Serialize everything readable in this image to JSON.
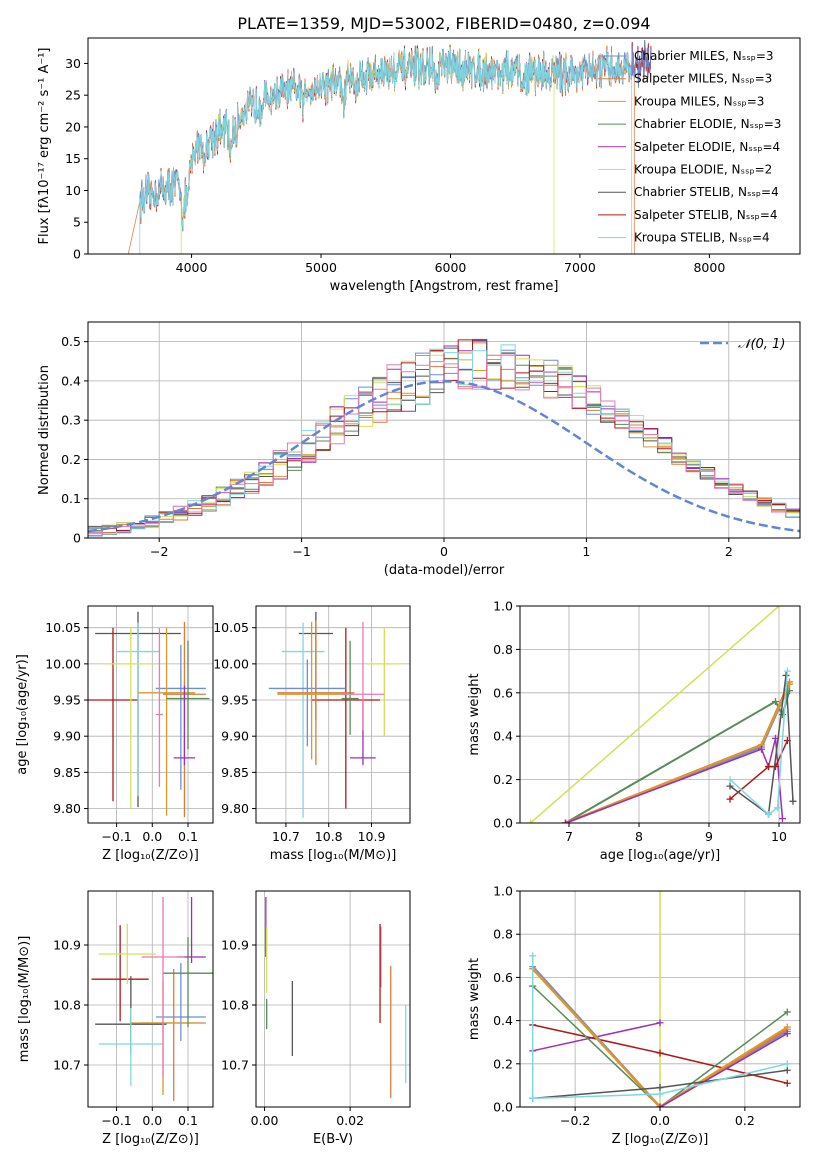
{
  "title": "PLATE=1359, MJD=53002, FIBERID=0480, z=0.094",
  "colors": {
    "Chabrier MILES": "#6b8fd6",
    "Salpeter MILES": "#e07a3c",
    "Kroupa MILES": "#d99a28",
    "Chabrier ELODIE": "#5b8a5b",
    "Salpeter ELODIE": "#9b30b8",
    "Kroupa ELODIE": "#d4e055",
    "Chabrier STELIB": "#555555",
    "Salpeter STELIB": "#b01818",
    "Kroupa STELIB": "#7fd8e0",
    "pink": "#e87ab8",
    "normal": "#5f87d6"
  },
  "chart_data": [
    {
      "type": "line",
      "name": "spectrum",
      "xlabel": "wavelength [Angstrom, rest frame]",
      "ylabel": "Flux [fλ10⁻¹⁷ erg cm⁻² s⁻¹ A⁻¹]",
      "xlim": [
        3200,
        8700
      ],
      "ylim": [
        0,
        34
      ],
      "xticks": [
        4000,
        5000,
        6000,
        7000,
        8000
      ],
      "yticks": [
        0,
        5,
        10,
        15,
        20,
        25,
        30
      ],
      "legend": "upper-right",
      "legend_entries": [
        "Chabrier MILES, Nₛₛₚ=3",
        "Salpeter MILES, Nₛₛₚ=3",
        "Kroupa MILES, Nₛₛₚ=3",
        "Chabrier ELODIE, Nₛₛₚ=3",
        "Salpeter ELODIE, Nₛₛₚ=4",
        "Kroupa ELODIE, Nₛₛₚ=2",
        "Chabrier STELIB, Nₛₛₚ=4",
        "Salpeter STELIB, Nₛₛₚ=4",
        "Kroupa STELIB, Nₛₛₚ=4"
      ],
      "legend_series": [
        "Chabrier MILES",
        "Salpeter MILES",
        "Kroupa MILES",
        "Chabrier ELODIE",
        "Salpeter ELODIE",
        "Kroupa ELODIE",
        "Chabrier STELIB",
        "Salpeter STELIB",
        "Kroupa STELIB"
      ],
      "continuum": {
        "x": [
          3600,
          3800,
          3950,
          4050,
          4250,
          4400,
          4700,
          5000,
          5300,
          5600,
          5900,
          6200,
          6600,
          7000,
          7400,
          7600
        ],
        "y": [
          8.5,
          10.5,
          11.5,
          17.5,
          19.5,
          22.5,
          25.5,
          26.5,
          28.0,
          29.0,
          29.5,
          29.0,
          28.5,
          28.5,
          29.5,
          31.0
        ]
      },
      "model_ranges": {
        "Salpeter MILES": [
          3500,
          7420
        ],
        "Kroupa ELODIE": [
          3920,
          6800
        ],
        "Kroupa STELIB": [
          3600,
          7400
        ]
      }
    },
    {
      "type": "histogram",
      "name": "residuals",
      "xlabel": "(data-model)/error",
      "ylabel": "Normed distribution",
      "xlim": [
        -2.5,
        2.5
      ],
      "ylim": [
        0,
        0.55
      ],
      "xticks": [
        -2,
        -1,
        0,
        1,
        2
      ],
      "yticks": [
        0.0,
        0.1,
        0.2,
        0.3,
        0.4,
        0.5
      ],
      "grid": true,
      "legend": "upper-right",
      "legend_entries": [
        "𝒩(0, 1)"
      ],
      "bin_width": 0.1,
      "bin_start": -2.5,
      "envelope": [
        0.017,
        0.022,
        0.027,
        0.034,
        0.042,
        0.052,
        0.063,
        0.076,
        0.09,
        0.106,
        0.124,
        0.143,
        0.164,
        0.186,
        0.209,
        0.233,
        0.258,
        0.283,
        0.307,
        0.331,
        0.353,
        0.374,
        0.392,
        0.407,
        0.42,
        0.43,
        0.436,
        0.439,
        0.439,
        0.436,
        0.43,
        0.42,
        0.407,
        0.392,
        0.374,
        0.353,
        0.331,
        0.307,
        0.283,
        0.258,
        0.233,
        0.209,
        0.186,
        0.164,
        0.143,
        0.124,
        0.106,
        0.09,
        0.076,
        0.063
      ]
    },
    {
      "type": "scatter",
      "name": "age-vs-Z",
      "xlabel": "Z [log₁₀(Z/Z⊙)]",
      "ylabel": "age  [log₁₀(age/yr)]",
      "xlim": [
        -0.18,
        0.17
      ],
      "ylim": [
        9.78,
        10.08
      ],
      "xticks": [
        -0.1,
        0.0,
        0.1
      ],
      "xticklabels": [
        "−0.1",
        "0.0",
        "0.1"
      ],
      "yticks": [
        9.8,
        9.85,
        9.9,
        9.95,
        10.0,
        10.05
      ],
      "yticklabels": [
        "9.80",
        "9.85",
        "9.90",
        "9.95",
        "10.00",
        "10.05"
      ],
      "points": [
        {
          "s": "Chabrier STELIB",
          "x": -0.04,
          "y": 10.042,
          "xe": 0.12,
          "ye": [
            0.24,
            0.03
          ]
        },
        {
          "s": "Salpeter STELIB",
          "x": -0.11,
          "y": 9.95,
          "xe": 0.07,
          "ye": [
            0.14,
            0.1
          ]
        },
        {
          "s": "Kroupa STELIB",
          "x": -0.04,
          "y": 10.017,
          "xe": 0.06,
          "ye": [
            0.2,
            0.04
          ]
        },
        {
          "s": "Chabrier MILES",
          "x": 0.08,
          "y": 9.966,
          "xe": 0.07,
          "ye": [
            0.14,
            0.06
          ]
        },
        {
          "s": "Salpeter MILES",
          "x": 0.09,
          "y": 9.958,
          "xe": 0.06,
          "ye": [
            0.17,
            0.1
          ]
        },
        {
          "s": "Kroupa MILES",
          "x": 0.04,
          "y": 9.96,
          "xe": 0.08,
          "ye": [
            0.17,
            0.09
          ]
        },
        {
          "s": "Chabrier ELODIE",
          "x": 0.1,
          "y": 9.952,
          "xe": 0.06,
          "ye": [
            0.07,
            0.08
          ]
        },
        {
          "s": "Salpeter ELODIE",
          "x": 0.09,
          "y": 9.87,
          "xe": 0.03,
          "ye": [
            0.01,
            0.1
          ]
        },
        {
          "s": "Kroupa ELODIE",
          "x": -0.06,
          "y": 10.0,
          "xe": 0.07,
          "ye": [
            0.2,
            0.05
          ]
        },
        {
          "s": "pink",
          "x": 0.02,
          "y": 9.93,
          "xe": 0.01,
          "ye": [
            0.1,
            0.12
          ]
        }
      ]
    },
    {
      "type": "scatter",
      "name": "age-vs-mass",
      "xlabel": "mass [log₁₀(M/M⊙)]",
      "ylabel": "",
      "xlim": [
        10.63,
        10.99
      ],
      "ylim": [
        9.78,
        10.08
      ],
      "xticks": [
        10.7,
        10.8,
        10.9
      ],
      "xticklabels": [
        "10.7",
        "10.8",
        "10.9"
      ],
      "yticks": [
        9.8,
        9.85,
        9.9,
        9.95,
        10.0,
        10.05
      ],
      "yticklabels": [
        "9.80",
        "9.85",
        "9.90",
        "9.95",
        "10.00",
        "10.05"
      ],
      "points": [
        {
          "s": "Chabrier STELIB",
          "x": 10.77,
          "y": 10.042,
          "xe": 0.04,
          "ye": [
            0.12,
            0.03
          ]
        },
        {
          "s": "Salpeter STELIB",
          "x": 10.84,
          "y": 9.95,
          "xe": 0.08,
          "ye": [
            0.15,
            0.1
          ]
        },
        {
          "s": "Kroupa STELIB",
          "x": 10.74,
          "y": 10.017,
          "xe": 0.05,
          "ye": [
            0.23,
            0.04
          ]
        },
        {
          "s": "Chabrier MILES",
          "x": 10.75,
          "y": 9.966,
          "xe": 0.09,
          "ye": [
            0.08,
            0.04
          ]
        },
        {
          "s": "Salpeter MILES",
          "x": 10.77,
          "y": 9.96,
          "xe": 0.09,
          "ye": [
            0.1,
            0.1
          ]
        },
        {
          "s": "Kroupa MILES",
          "x": 10.76,
          "y": 9.958,
          "xe": 0.08,
          "ye": [
            0.09,
            0.1
          ]
        },
        {
          "s": "Chabrier ELODIE",
          "x": 10.85,
          "y": 9.952,
          "xe": 0.02,
          "ye": [
            0.05,
            0.08
          ]
        },
        {
          "s": "Salpeter ELODIE",
          "x": 10.88,
          "y": 9.87,
          "xe": 0.03,
          "ye": [
            0.01,
            0.08
          ]
        },
        {
          "s": "Kroupa ELODIE",
          "x": 10.93,
          "y": 10.0,
          "xe": 0.04,
          "ye": [
            0.1,
            0.05
          ]
        },
        {
          "s": "pink",
          "x": 10.88,
          "y": 9.958,
          "xe": 0.05,
          "ye": [
            0.05,
            0.1
          ]
        }
      ]
    },
    {
      "type": "line",
      "name": "mass-weight-vs-age",
      "xlabel": "age  [log₁₀(age/yr)]",
      "ylabel": "mass weight",
      "xlim": [
        6.3,
        10.3
      ],
      "ylim": [
        0,
        1.0
      ],
      "xticks": [
        7,
        8,
        9,
        10
      ],
      "yticks": [
        0.0,
        0.2,
        0.4,
        0.6,
        0.8,
        1.0
      ],
      "yticklabels": [
        "0.0",
        "0.2",
        "0.4",
        "0.6",
        "0.8",
        "1.0"
      ],
      "series": [
        {
          "s": "Kroupa ELODIE",
          "x": [
            6.45,
            10.0
          ],
          "y": [
            0.0,
            1.0
          ],
          "w": 1.5
        },
        {
          "s": "Chabrier ELODIE",
          "x": [
            6.95,
            9.95,
            10.05,
            10.15
          ],
          "y": [
            0.0,
            0.56,
            0.5,
            0.61
          ],
          "w": 2.0
        },
        {
          "s": "Chabrier MILES",
          "x": [
            6.95,
            9.75,
            10.15
          ],
          "y": [
            0.0,
            0.35,
            0.64
          ],
          "w": 2.5
        },
        {
          "s": "Salpeter MILES",
          "x": [
            6.95,
            9.75,
            10.15
          ],
          "y": [
            0.0,
            0.36,
            0.65
          ],
          "w": 2.5
        },
        {
          "s": "Kroupa MILES",
          "x": [
            6.95,
            9.75,
            10.15
          ],
          "y": [
            0.0,
            0.36,
            0.64
          ],
          "w": 2.0
        },
        {
          "s": "Salpeter ELODIE",
          "x": [
            6.95,
            9.75,
            9.85,
            9.95,
            10.05
          ],
          "y": [
            0.0,
            0.34,
            0.26,
            0.39,
            0.02
          ],
          "w": 1.5
        },
        {
          "s": "Salpeter STELIB",
          "x": [
            9.3,
            9.85,
            9.95,
            10.12
          ],
          "y": [
            0.11,
            0.26,
            0.26,
            0.38
          ],
          "w": 1.5
        },
        {
          "s": "Chabrier STELIB",
          "x": [
            9.3,
            9.85,
            10.1,
            10.2
          ],
          "y": [
            0.17,
            0.04,
            0.68,
            0.1
          ],
          "w": 1.5
        },
        {
          "s": "Kroupa STELIB",
          "x": [
            9.3,
            9.85,
            9.98,
            10.12
          ],
          "y": [
            0.2,
            0.04,
            0.07,
            0.7
          ],
          "w": 1.5
        }
      ]
    },
    {
      "type": "scatter",
      "name": "mass-vs-Z",
      "xlabel": "Z [log₁₀(Z/Z⊙)]",
      "ylabel": "mass [log₁₀(M/M⊙)]",
      "xlim": [
        -0.18,
        0.17
      ],
      "ylim": [
        10.63,
        10.99
      ],
      "xticks": [
        -0.1,
        0.0,
        0.1
      ],
      "xticklabels": [
        "−0.1",
        "0.0",
        "0.1"
      ],
      "yticks": [
        10.7,
        10.8,
        10.9
      ],
      "yticklabels": [
        "10.7",
        "10.8",
        "10.9"
      ],
      "points": [
        {
          "s": "Chabrier STELIB",
          "x": -0.06,
          "y": 10.768,
          "xe": 0.1,
          "ye": [
            0.05,
            0.08
          ]
        },
        {
          "s": "Salpeter STELIB",
          "x": -0.09,
          "y": 10.843,
          "xe": 0.08,
          "ye": [
            0.07,
            0.09
          ]
        },
        {
          "s": "Kroupa STELIB",
          "x": -0.06,
          "y": 10.735,
          "xe": 0.09,
          "ye": [
            0.07,
            0.06
          ]
        },
        {
          "s": "Chabrier MILES",
          "x": 0.08,
          "y": 10.78,
          "xe": 0.07,
          "ye": [
            0.04,
            0.09
          ]
        },
        {
          "s": "Salpeter MILES",
          "x": 0.06,
          "y": 10.77,
          "xe": 0.09,
          "ye": [
            0.13,
            0.09
          ]
        },
        {
          "s": "Kroupa MILES",
          "x": 0.03,
          "y": 10.77,
          "xe": 0.09,
          "ye": [
            0.12,
            0.07
          ]
        },
        {
          "s": "Chabrier ELODIE",
          "x": 0.1,
          "y": 10.853,
          "xe": 0.07,
          "ye": [
            0.09,
            0.06
          ]
        },
        {
          "s": "Salpeter ELODIE",
          "x": 0.11,
          "y": 10.88,
          "xe": 0.04,
          "ye": [
            0.01,
            0.1
          ]
        },
        {
          "s": "Kroupa ELODIE",
          "x": -0.07,
          "y": 10.885,
          "xe": 0.08,
          "ye": [
            0.05,
            0.05
          ]
        },
        {
          "s": "pink",
          "x": 0.03,
          "y": 10.88,
          "xe": 0.06,
          "ye": [
            0.2,
            0.1
          ]
        }
      ]
    },
    {
      "type": "scatter",
      "name": "mass-vs-EBV",
      "xlabel": "E(B-V)",
      "ylabel": "",
      "xlim": [
        -0.002,
        0.034
      ],
      "ylim": [
        10.63,
        10.99
      ],
      "xticks": [
        0.0,
        0.02
      ],
      "xticklabels": [
        "0.00",
        "0.02"
      ],
      "yticks": [
        10.7,
        10.8,
        10.9
      ],
      "yticklabels": [
        "10.7",
        "10.8",
        "10.9"
      ],
      "points": [
        {
          "s": "Salpeter ELODIE",
          "x": 0.0003,
          "y": 10.93,
          "ye": [
            0.05,
            0.05
          ]
        },
        {
          "s": "Kroupa ELODIE",
          "x": 0.0005,
          "y": 10.85,
          "ye": [
            0.03,
            0.08
          ]
        },
        {
          "s": "Chabrier ELODIE",
          "x": 0.0005,
          "y": 10.78,
          "ye": [
            0.02,
            0.03
          ]
        },
        {
          "s": "Chabrier STELIB",
          "x": 0.0065,
          "y": 10.775,
          "ye": [
            0.06,
            0.065
          ]
        },
        {
          "s": "pink",
          "x": 0.0272,
          "y": 10.88,
          "ye": [
            0.05,
            0.05
          ]
        },
        {
          "s": "Salpeter STELIB",
          "x": 0.027,
          "y": 10.85,
          "ye": [
            0.08,
            0.085
          ]
        },
        {
          "s": "Salpeter MILES",
          "x": 0.0295,
          "y": 10.755,
          "ye": [
            0.11,
            0.11
          ]
        },
        {
          "s": "Kroupa STELIB",
          "x": 0.033,
          "y": 10.735,
          "ye": [
            0.065,
            0.065
          ]
        }
      ]
    },
    {
      "type": "line",
      "name": "mass-weight-vs-Z",
      "xlabel": "Z [log₁₀(Z/Z⊙)]",
      "ylabel": "mass weight",
      "xlim": [
        -0.33,
        0.33
      ],
      "ylim": [
        0,
        1.0
      ],
      "xticks": [
        -0.2,
        0.0,
        0.2
      ],
      "xticklabels": [
        "−0.2",
        "0.0",
        "0.2"
      ],
      "yticks": [
        0.0,
        0.2,
        0.4,
        0.6,
        0.8,
        1.0
      ],
      "yticklabels": [
        "0.0",
        "0.2",
        "0.4",
        "0.6",
        "0.8",
        "1.0"
      ],
      "series": [
        {
          "s": "Kroupa ELODIE",
          "x": [
            0.0,
            0.0
          ],
          "y": [
            0.0,
            1.0
          ],
          "w": 1.5
        },
        {
          "s": "Salpeter ELODIE",
          "x": [
            -0.3,
            0.0
          ],
          "y": [
            0.26,
            0.39
          ],
          "w": 1.5
        },
        {
          "s": "Salpeter STELIB",
          "x": [
            -0.3,
            0.0,
            0.3
          ],
          "y": [
            0.38,
            0.25,
            0.11
          ],
          "w": 1.5
        },
        {
          "s": "Chabrier ELODIE",
          "x": [
            -0.3,
            0.0,
            0.3
          ],
          "y": [
            0.56,
            0.0,
            0.44
          ],
          "w": 1.5
        },
        {
          "s": "Chabrier MILES",
          "x": [
            -0.3,
            0.0,
            0.3
          ],
          "y": [
            0.65,
            0.0,
            0.35
          ],
          "w": 2.5
        },
        {
          "s": "Salpeter MILES",
          "x": [
            -0.3,
            0.0,
            0.3
          ],
          "y": [
            0.64,
            0.0,
            0.36
          ],
          "w": 2.5
        },
        {
          "s": "Kroupa MILES",
          "x": [
            -0.3,
            0.0,
            0.3
          ],
          "y": [
            0.64,
            0.0,
            0.37
          ],
          "w": 2.0
        },
        {
          "s": "Salpeter ELODIE",
          "x": [
            0.0,
            0.3
          ],
          "y": [
            0.0,
            0.34
          ],
          "w": 1.5
        },
        {
          "s": "Chabrier STELIB",
          "x": [
            -0.3,
            0.0,
            0.3
          ],
          "y": [
            0.04,
            0.09,
            0.17
          ],
          "w": 1.5
        },
        {
          "s": "Kroupa STELIB",
          "x": [
            -0.3,
            -0.3,
            0.0,
            0.3
          ],
          "y": [
            0.7,
            0.04,
            0.06,
            0.2
          ],
          "w": 1.5
        }
      ]
    }
  ]
}
